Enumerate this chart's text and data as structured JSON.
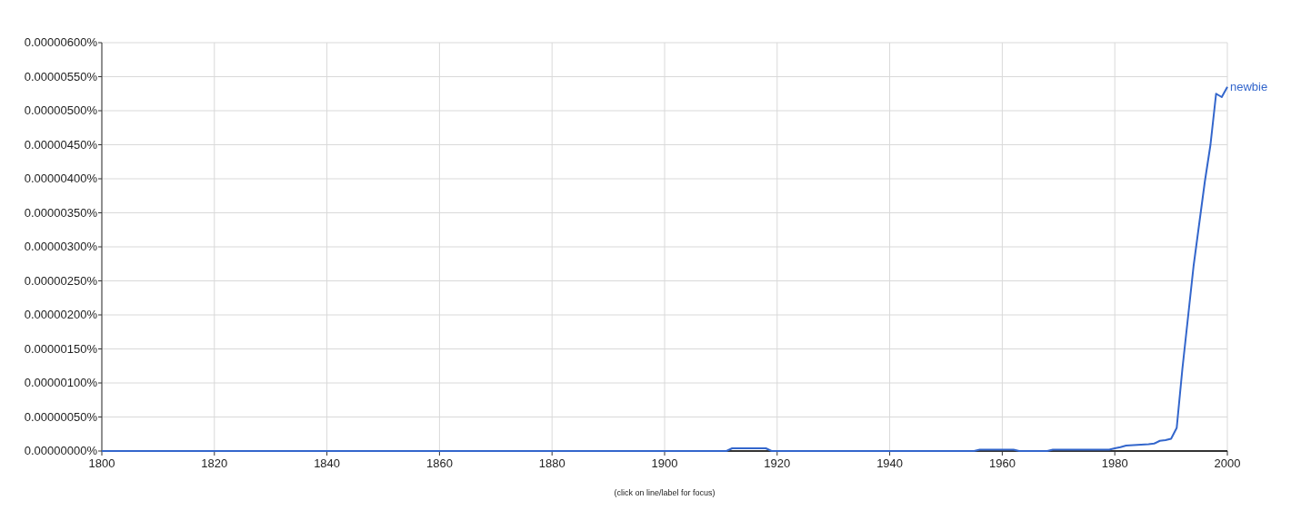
{
  "chart_data": {
    "type": "line",
    "x": [
      1800,
      1911,
      1912,
      1918,
      1919,
      1955,
      1956,
      1962,
      1963,
      1968,
      1969,
      1979,
      1980,
      1981,
      1982,
      1984,
      1986,
      1987,
      1988,
      1989,
      1990,
      1991,
      1992,
      1993,
      1994,
      1995,
      1996,
      1997,
      1998,
      1999,
      2000
    ],
    "series": [
      {
        "name": "newbie",
        "color": "#3366cc",
        "values": [
          0,
          0,
          4e-08,
          4e-08,
          0,
          0,
          2e-08,
          2e-08,
          0,
          0,
          2e-08,
          2e-08,
          4e-08,
          5.7e-08,
          8e-08,
          9e-08,
          1e-07,
          1.1e-07,
          1.5e-07,
          1.6e-07,
          1.8e-07,
          3.4e-07,
          1.2e-06,
          1.96e-06,
          2.72e-06,
          3.34e-06,
          3.96e-06,
          4.5e-06,
          5.25e-06,
          5.2e-06,
          5.35e-06
        ]
      }
    ],
    "xlim": [
      1800,
      2000
    ],
    "xticks": [
      1800,
      1820,
      1840,
      1860,
      1880,
      1900,
      1920,
      1940,
      1960,
      1980,
      2000
    ],
    "ylim": [
      0,
      6e-06
    ],
    "yticks": [
      {
        "value": 0,
        "label": "0.00000000%"
      },
      {
        "value": 5e-07,
        "label": "0.00000050%"
      },
      {
        "value": 1e-06,
        "label": "0.00000100%"
      },
      {
        "value": 1.5e-06,
        "label": "0.00000150%"
      },
      {
        "value": 2e-06,
        "label": "0.00000200%"
      },
      {
        "value": 2.5e-06,
        "label": "0.00000250%"
      },
      {
        "value": 3e-06,
        "label": "0.00000300%"
      },
      {
        "value": 3.5e-06,
        "label": "0.00000350%"
      },
      {
        "value": 4e-06,
        "label": "0.00000400%"
      },
      {
        "value": 4.5e-06,
        "label": "0.00000450%"
      },
      {
        "value": 5e-06,
        "label": "0.00000500%"
      },
      {
        "value": 5.5e-06,
        "label": "0.00000550%"
      },
      {
        "value": 6e-06,
        "label": "0.00000600%"
      }
    ],
    "grid": true,
    "marker": "none",
    "line_style": "solid",
    "annotations": [
      "(click on line/label for focus)"
    ]
  }
}
